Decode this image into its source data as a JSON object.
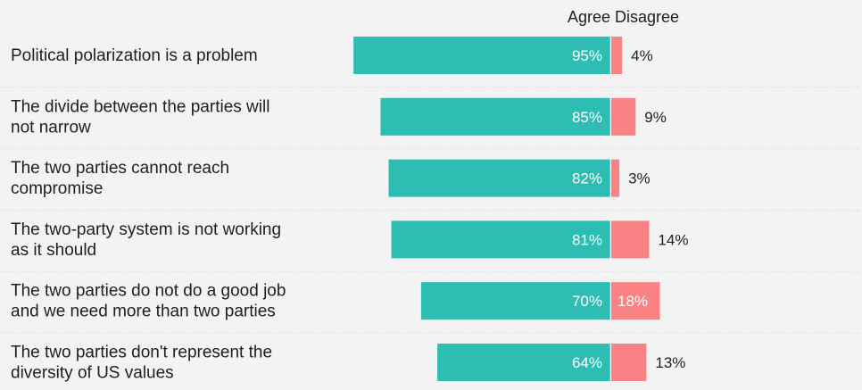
{
  "chart_data": {
    "type": "bar",
    "orientation": "horizontal-diverging",
    "legend": [
      "Agree",
      "Disagree"
    ],
    "legend_placement": "top",
    "colors": {
      "agree": "#2ebdb3",
      "disagree": "#fb8284"
    },
    "categories": [
      [
        "Political polarization is a problem"
      ],
      [
        "The divide between the parties will",
        "not narrow"
      ],
      [
        "The two parties cannot reach",
        "compromise"
      ],
      [
        "The two-party system is not working",
        "as it should"
      ],
      [
        "The two parties do not do a good job",
        "and we need more than two parties"
      ],
      [
        "The two parties don't represent the",
        "diversity of US values"
      ]
    ],
    "series": [
      {
        "name": "Agree",
        "values": [
          95,
          85,
          82,
          81,
          70,
          64
        ]
      },
      {
        "name": "Disagree",
        "values": [
          4,
          9,
          3,
          14,
          18,
          13
        ]
      }
    ],
    "labels": {
      "agree": [
        "95%",
        "85%",
        "82%",
        "81%",
        "70%",
        "64%"
      ],
      "disagree": [
        "4%",
        "9%",
        "3%",
        "14%",
        "18%",
        "13%"
      ]
    },
    "grid": false
  }
}
